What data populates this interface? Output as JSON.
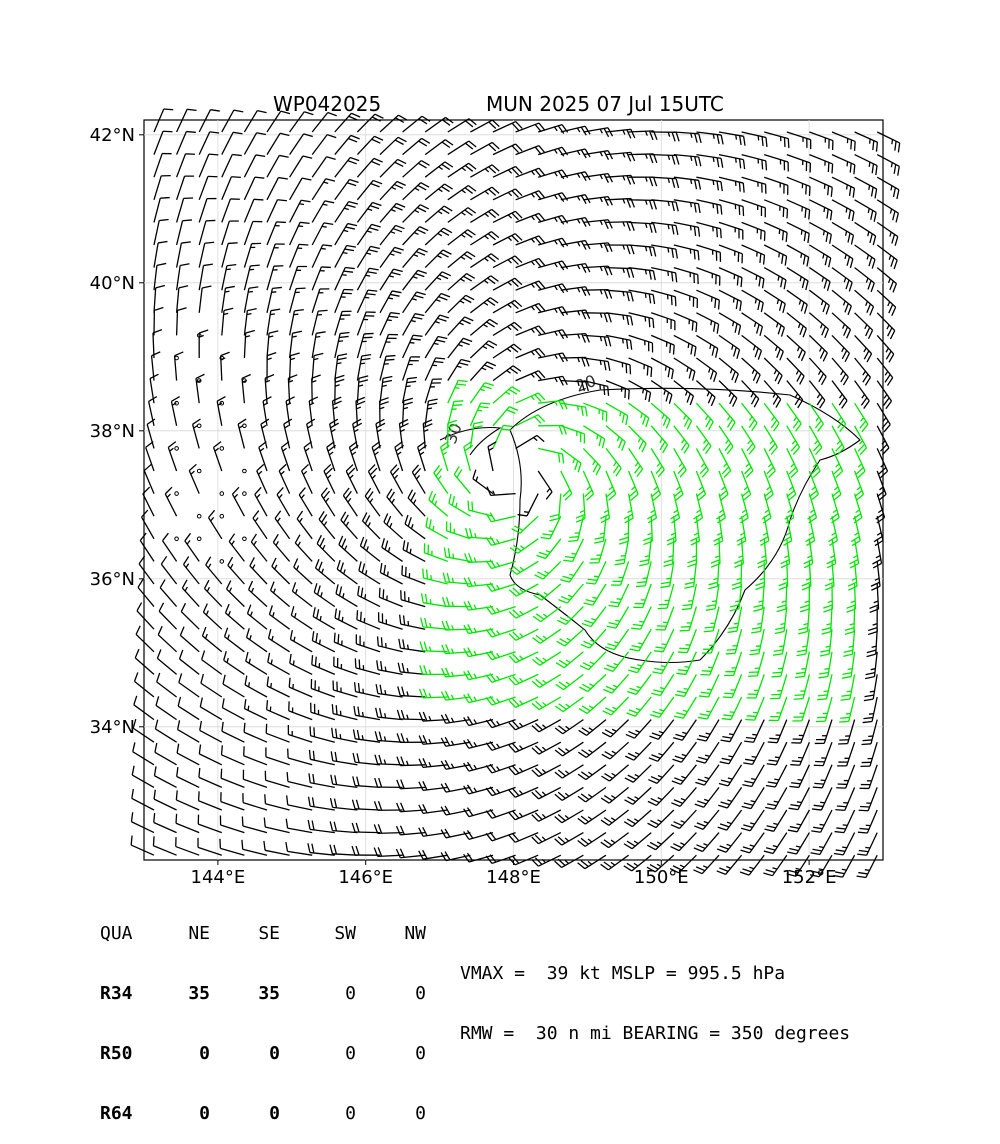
{
  "header": {
    "storm_id": "WP042025",
    "model_time": "MUN 2025 07 Jul 15UTC"
  },
  "map": {
    "lon_range": [
      143.0,
      153.0
    ],
    "lat_range": [
      32.2,
      42.2
    ],
    "lon_ticks": [
      {
        "value": 144,
        "label": "144°E"
      },
      {
        "value": 146,
        "label": "146°E"
      },
      {
        "value": 148,
        "label": "148°E"
      },
      {
        "value": 150,
        "label": "150°E"
      },
      {
        "value": 152,
        "label": "152°E"
      }
    ],
    "lat_ticks": [
      {
        "value": 42,
        "label": "42°N"
      },
      {
        "value": 40,
        "label": "40°N"
      },
      {
        "value": 38,
        "label": "38°N"
      },
      {
        "value": 36,
        "label": "36°N"
      },
      {
        "value": 34,
        "label": "34°N"
      }
    ],
    "grid": true,
    "storm_center": {
      "lon": 148.1,
      "lat": 37.4
    },
    "contour_label": "20",
    "contour_label_2": "30",
    "barb_color": "#000000",
    "strong_barb_color": "#00e600",
    "contour_color": "#000000"
  },
  "wind_radii": {
    "header": [
      "QUA",
      "NE",
      "SE",
      "SW",
      "NW"
    ],
    "rows": [
      {
        "label": "R34",
        "values": [
          "35",
          "35",
          "0",
          "0"
        ]
      },
      {
        "label": "R50",
        "values": [
          "0",
          "0",
          "0",
          "0"
        ]
      },
      {
        "label": "R64",
        "values": [
          "0",
          "0",
          "0",
          "0"
        ]
      }
    ]
  },
  "stats": {
    "line1": "VMAX =  39 kt MSLP = 995.5 hPa",
    "line2": "RMW =  30 n mi BEARING = 350 degrees"
  }
}
